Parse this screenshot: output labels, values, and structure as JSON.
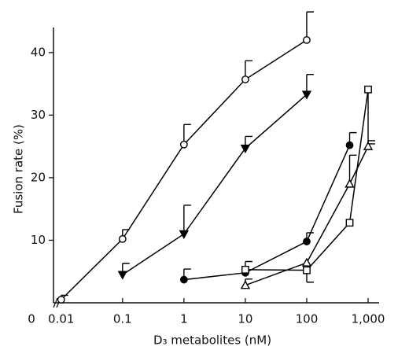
{
  "chart_data": {
    "type": "line",
    "y_label": "Fusion rate (%)",
    "x_label": "D₃ metabolites (nM)",
    "origin_label": "0",
    "xscale": "log",
    "xlim": [
      0.0075,
      1700
    ],
    "xticks": [
      0.01,
      0.1,
      1,
      10,
      100,
      {
        "value": 1000,
        "label": "1,000"
      }
    ],
    "ylim": [
      0,
      44
    ],
    "yticks": [
      10,
      20,
      30,
      40
    ],
    "grid": false,
    "series": [
      {
        "marker": "circle-open",
        "color": "#000000",
        "error_direction": "up",
        "x": [
          0.01,
          0.1,
          1,
          10,
          100
        ],
        "values": [
          0.5,
          10.2,
          25.3,
          35.7,
          42
        ],
        "errors": [
          0.7,
          1.5,
          3.2,
          3,
          4.5
        ]
      },
      {
        "marker": "triangle-down-filled",
        "color": "#000000",
        "error_direction": "up",
        "x": [
          0.1,
          1,
          10,
          100
        ],
        "values": [
          4.5,
          11,
          24.7,
          33.3
        ],
        "errors": [
          1.8,
          4.6,
          1.9,
          3.2
        ]
      },
      {
        "marker": "circle-filled",
        "color": "#000000",
        "error_direction": "up",
        "x": [
          1,
          10,
          100,
          500
        ],
        "values": [
          3.7,
          4.8,
          9.8,
          25.2
        ],
        "errors": [
          1.7,
          1.8,
          1.4,
          2
        ]
      },
      {
        "marker": "square-open",
        "color": "#000000",
        "error_direction": "down",
        "x": [
          10,
          100,
          500,
          1000
        ],
        "values": [
          5.3,
          5.2,
          12.8,
          34.1
        ],
        "errors": [
          null,
          1.9,
          null,
          8.7
        ]
      },
      {
        "marker": "triangle-up-open",
        "color": "#000000",
        "error_direction": "up",
        "x": [
          10,
          100,
          500,
          1000
        ],
        "values": [
          2.8,
          6.4,
          19,
          25
        ],
        "errors": [
          1,
          null,
          4.6,
          0.9
        ]
      }
    ]
  }
}
